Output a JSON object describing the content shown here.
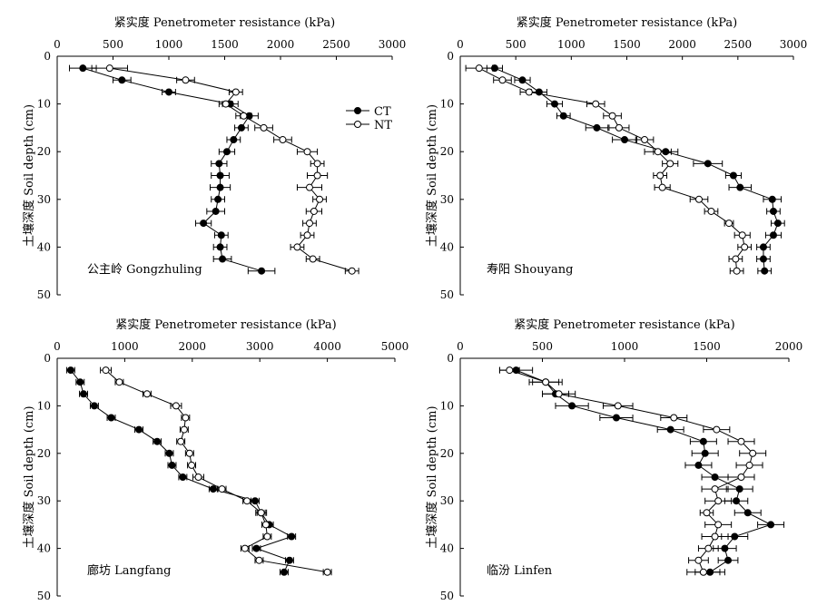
{
  "figure": {
    "legend": [
      {
        "name": "CT",
        "marker": "filled"
      },
      {
        "name": "NT",
        "marker": "open"
      }
    ]
  },
  "chart_data": [
    {
      "type": "line",
      "title": "紧实度 Penetrometer resistance (kPa)",
      "ylabel": "土壤深度 Soil depth (cm)",
      "annotation": "公主岭 Gongzhuling",
      "xlim": [
        0,
        3000
      ],
      "xticks": [
        0,
        500,
        1000,
        1500,
        2000,
        2500,
        3000
      ],
      "ylim": [
        0,
        50
      ],
      "yticks": [
        0,
        10,
        20,
        30,
        40,
        50
      ],
      "y": [
        2.5,
        5,
        7.5,
        10,
        12.5,
        15,
        17.5,
        20,
        22.5,
        25,
        27.5,
        30,
        32.5,
        35,
        37.5,
        40,
        42.5,
        45
      ],
      "series": [
        {
          "name": "CT",
          "marker": "filled",
          "values": [
            230,
            580,
            1000,
            1550,
            1720,
            1650,
            1580,
            1520,
            1450,
            1460,
            1460,
            1440,
            1420,
            1310,
            1470,
            1460,
            1480,
            1830
          ],
          "error": [
            120,
            80,
            60,
            70,
            80,
            60,
            60,
            70,
            70,
            80,
            90,
            60,
            80,
            70,
            60,
            60,
            80,
            120
          ]
        },
        {
          "name": "NT",
          "marker": "open",
          "values": [
            470,
            1150,
            1600,
            1510,
            1670,
            1850,
            2020,
            2240,
            2330,
            2330,
            2260,
            2350,
            2300,
            2260,
            2240,
            2150,
            2290,
            2640
          ],
          "error": [
            160,
            80,
            60,
            60,
            70,
            80,
            80,
            90,
            60,
            90,
            110,
            60,
            70,
            60,
            60,
            60,
            60,
            60
          ]
        }
      ]
    },
    {
      "type": "line",
      "title": "紧实度 Penetrometer resistance (kPa)",
      "ylabel": "土壤深度 Soil depth (cm)",
      "annotation": "寿阳 Shouyang",
      "xlim": [
        0,
        3000
      ],
      "xticks": [
        0,
        500,
        1000,
        1500,
        2000,
        2500,
        3000
      ],
      "ylim": [
        0,
        50
      ],
      "yticks": [
        0,
        10,
        20,
        30,
        40,
        50
      ],
      "y": [
        2.5,
        5,
        7.5,
        10,
        12.5,
        15,
        17.5,
        20,
        22.5,
        25,
        27.5,
        30,
        32.5,
        35,
        37.5,
        40,
        42.5,
        45
      ],
      "series": [
        {
          "name": "CT",
          "marker": "filled",
          "values": [
            310,
            560,
            710,
            850,
            930,
            1230,
            1480,
            1850,
            2230,
            2460,
            2520,
            2810,
            2820,
            2860,
            2820,
            2730,
            2730,
            2740
          ],
          "error": [
            70,
            70,
            70,
            70,
            60,
            100,
            110,
            110,
            130,
            70,
            100,
            80,
            60,
            60,
            70,
            60,
            60,
            60
          ]
        },
        {
          "name": "NT",
          "marker": "open",
          "values": [
            170,
            380,
            620,
            1220,
            1370,
            1430,
            1660,
            1780,
            1890,
            1800,
            1820,
            2150,
            2260,
            2420,
            2540,
            2560,
            2480,
            2490
          ],
          "error": [
            120,
            80,
            80,
            80,
            80,
            90,
            80,
            120,
            70,
            60,
            70,
            80,
            60,
            40,
            70,
            60,
            60,
            60
          ]
        }
      ]
    },
    {
      "type": "line",
      "title": "紧实度 Penetrometer resistance (kPa)",
      "ylabel": "土壤深度 Soil depth (cm)",
      "annotation": "廊坊 Langfang",
      "xlim": [
        0,
        5000
      ],
      "xticks": [
        0,
        1000,
        2000,
        3000,
        4000,
        5000
      ],
      "ylim": [
        0,
        50
      ],
      "yticks": [
        0,
        10,
        20,
        30,
        40,
        50
      ],
      "y": [
        2.5,
        5,
        7.5,
        10,
        12.5,
        15,
        17.5,
        20,
        22.5,
        25,
        27.5,
        30,
        32.5,
        35,
        37.5,
        40,
        42.5,
        45
      ],
      "series": [
        {
          "name": "CT",
          "marker": "filled",
          "values": [
            200,
            340,
            390,
            550,
            800,
            1210,
            1480,
            1660,
            1700,
            1860,
            2310,
            2930,
            3020,
            3140,
            3470,
            2950,
            3440,
            3360
          ],
          "error": [
            60,
            60,
            60,
            60,
            60,
            60,
            60,
            60,
            60,
            60,
            60,
            60,
            80,
            60,
            60,
            60,
            60,
            60
          ]
        },
        {
          "name": "NT",
          "marker": "open",
          "values": [
            720,
            920,
            1330,
            1760,
            1900,
            1880,
            1830,
            1960,
            1990,
            2090,
            2440,
            2810,
            3020,
            3090,
            3110,
            2780,
            2990,
            4000
          ],
          "error": [
            80,
            60,
            60,
            80,
            60,
            60,
            60,
            60,
            60,
            80,
            60,
            60,
            60,
            60,
            60,
            60,
            60,
            60
          ]
        }
      ]
    },
    {
      "type": "line",
      "title": "紧实度 Penetrometer resistance (kPa)",
      "ylabel": "土壤深度 Soil depth (cm)",
      "annotation": "临汾 Linfen",
      "xlim": [
        0,
        2000
      ],
      "xticks": [
        0,
        500,
        1000,
        1500,
        2000
      ],
      "ylim": [
        0,
        50
      ],
      "yticks": [
        0,
        10,
        20,
        30,
        40,
        50
      ],
      "y": [
        2.5,
        5,
        7.5,
        10,
        12.5,
        15,
        17.5,
        20,
        22.5,
        25,
        27.5,
        30,
        32.5,
        35,
        37.5,
        40,
        42.5,
        45
      ],
      "series": [
        {
          "name": "CT",
          "marker": "filled",
          "values": [
            340,
            520,
            580,
            680,
            950,
            1280,
            1480,
            1490,
            1450,
            1550,
            1700,
            1680,
            1750,
            1890,
            1670,
            1610,
            1630,
            1520
          ],
          "error": [
            100,
            80,
            80,
            100,
            100,
            80,
            80,
            80,
            80,
            80,
            80,
            70,
            80,
            80,
            80,
            70,
            60,
            90
          ]
        },
        {
          "name": "NT",
          "marker": "open",
          "values": [
            300,
            520,
            600,
            960,
            1300,
            1560,
            1710,
            1780,
            1760,
            1710,
            1550,
            1570,
            1500,
            1570,
            1550,
            1510,
            1450,
            1480
          ],
          "error": [
            60,
            100,
            100,
            90,
            80,
            80,
            80,
            80,
            80,
            80,
            80,
            80,
            40,
            80,
            80,
            60,
            60,
            100
          ]
        }
      ]
    }
  ]
}
